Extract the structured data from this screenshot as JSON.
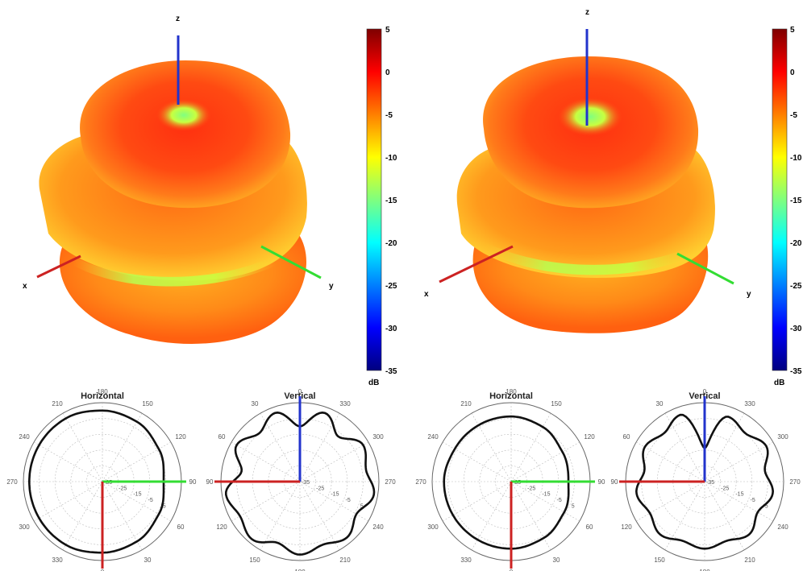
{
  "colormap": [
    "#00007f",
    "#0000ff",
    "#007fff",
    "#00ffff",
    "#7fff7f",
    "#ffff00",
    "#ff7f00",
    "#ff0000",
    "#7f0000"
  ],
  "chart_data": [
    {
      "type": "3d-surface-radiation-pattern",
      "axes": [
        "x",
        "y",
        "z"
      ],
      "axis_colors": {
        "x": "#cc2222",
        "y": "#33dd33",
        "z": "#2233cc"
      },
      "colorbar": {
        "ticks": [
          "5",
          "0",
          "-5",
          "-10",
          "-15",
          "-20",
          "-25",
          "-30",
          "-35"
        ],
        "unit": "dB",
        "range": [
          -35,
          5
        ]
      }
    },
    {
      "type": "3d-surface-radiation-pattern",
      "axes": [
        "x",
        "y",
        "z"
      ],
      "axis_colors": {
        "x": "#cc2222",
        "y": "#33dd33",
        "z": "#2233cc"
      },
      "colorbar": {
        "ticks": [
          "5",
          "0",
          "-5",
          "-10",
          "-15",
          "-20",
          "-25",
          "-30",
          "-35"
        ],
        "unit": "dB",
        "range": [
          -35,
          5
        ]
      }
    },
    {
      "type": "polar",
      "title": "Horizontal",
      "angle_labels": [
        "180",
        "150",
        "120",
        "90",
        "60",
        "30",
        "0",
        "330",
        "300",
        "270",
        "240",
        "210"
      ],
      "angle_offsets_deg": [
        0,
        30,
        60,
        90,
        120,
        150,
        180,
        210,
        240,
        270,
        300,
        330
      ],
      "radial_labels": [
        "-35",
        "-25",
        "-15",
        "-5",
        "5"
      ],
      "rlim": [
        -35,
        5
      ],
      "series": [
        {
          "theta_deg": [
            0,
            30,
            60,
            90,
            120,
            150,
            180,
            210,
            240,
            270,
            300,
            330
          ],
          "r_db": [
            1,
            0,
            -2,
            -4,
            -2,
            0,
            1,
            2,
            2,
            2,
            2,
            2
          ]
        }
      ]
    },
    {
      "type": "polar",
      "title": "Vertical",
      "angle_labels": [
        "0",
        "330",
        "300",
        "270",
        "240",
        "210",
        "180",
        "150",
        "120",
        "90",
        "60",
        "30"
      ],
      "angle_offsets_deg": [
        0,
        30,
        60,
        90,
        120,
        150,
        180,
        210,
        240,
        270,
        300,
        330
      ],
      "radial_labels": [
        "-35",
        "-25",
        "-15",
        "-5",
        "5"
      ],
      "rlim": [
        -35,
        5
      ],
      "series": [
        {
          "theta_deg": [
            0,
            20,
            40,
            60,
            80,
            100,
            120,
            140,
            160,
            180,
            200,
            220,
            240,
            260,
            280,
            300,
            320,
            340
          ],
          "r_db": [
            -7,
            2,
            -5,
            2,
            -1,
            3,
            -2,
            2,
            -1,
            2,
            -2,
            3,
            0,
            3,
            -5,
            2,
            -3,
            2
          ]
        }
      ]
    },
    {
      "type": "polar",
      "title": "Horizontal",
      "angle_labels": [
        "180",
        "150",
        "120",
        "90",
        "60",
        "30",
        "0",
        "330",
        "300",
        "270",
        "240",
        "210"
      ],
      "angle_offsets_deg": [
        0,
        30,
        60,
        90,
        120,
        150,
        180,
        210,
        240,
        270,
        300,
        330
      ],
      "radial_labels": [
        "-35",
        "-25",
        "-15",
        "-5",
        "5"
      ],
      "rlim": [
        -35,
        5
      ],
      "series": [
        {
          "theta_deg": [
            0,
            30,
            60,
            90,
            120,
            150,
            180,
            210,
            240,
            270,
            300,
            330
          ],
          "r_db": [
            -2,
            -3,
            -5,
            -6,
            -4,
            -2,
            -1,
            -1,
            -1,
            -1,
            -2,
            -2
          ]
        }
      ]
    },
    {
      "type": "polar",
      "title": "Vertical",
      "angle_labels": [
        "0",
        "330",
        "300",
        "270",
        "240",
        "210",
        "180",
        "150",
        "120",
        "90",
        "60",
        "30"
      ],
      "angle_offsets_deg": [
        0,
        30,
        60,
        90,
        120,
        150,
        180,
        210,
        240,
        270,
        300,
        330
      ],
      "radial_labels": [
        "-35",
        "-25",
        "-15",
        "-5",
        "5"
      ],
      "rlim": [
        -35,
        5
      ],
      "series": [
        {
          "theta_deg": [
            0,
            20,
            40,
            60,
            80,
            100,
            120,
            140,
            160,
            180,
            200,
            220,
            240,
            260,
            280,
            300,
            320,
            340
          ],
          "r_db": [
            -18,
            0,
            -3,
            1,
            -4,
            0,
            -4,
            0,
            -3,
            -1,
            -3,
            0,
            -3,
            0,
            -4,
            0,
            -3,
            1
          ]
        }
      ]
    }
  ]
}
